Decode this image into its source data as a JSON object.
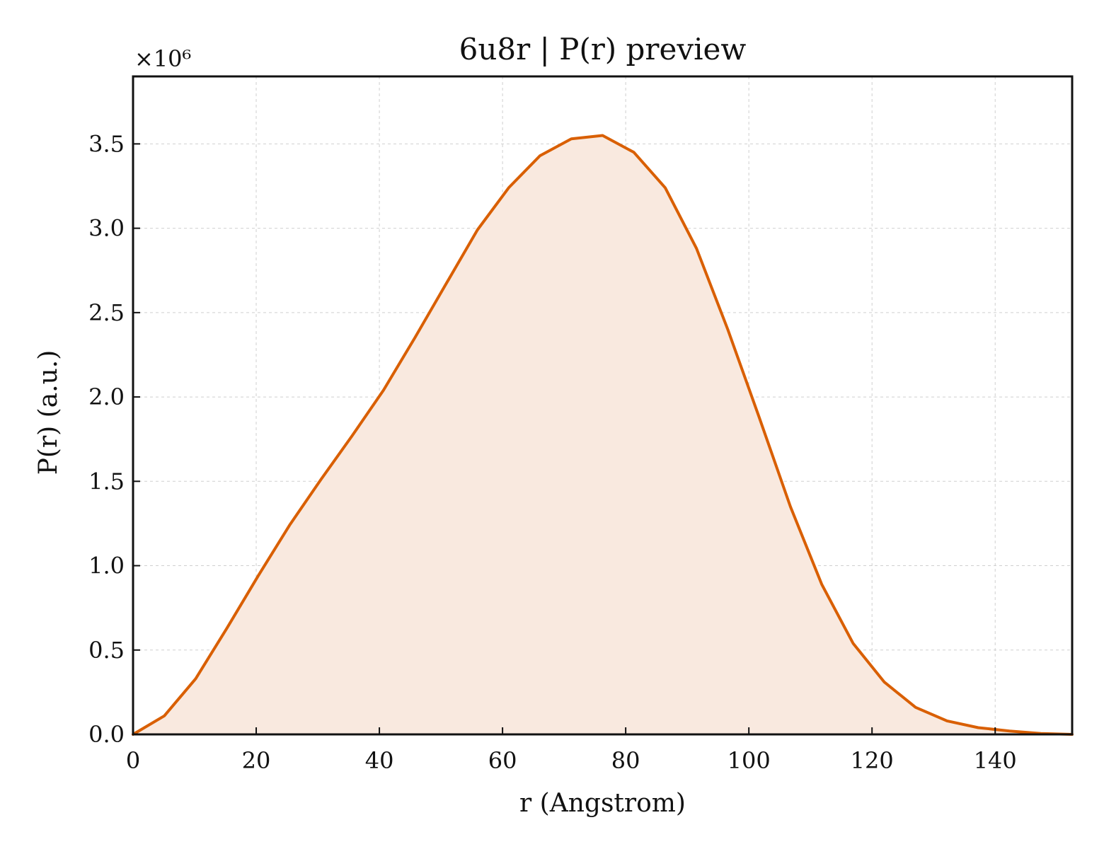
{
  "chart_data": {
    "type": "area",
    "title": "6u8r | P(r) preview",
    "xlabel": "r (Angstrom)",
    "ylabel": "P(r) (a.u.)",
    "y_scale_label": "×10⁶",
    "y_multiplier": 1000000,
    "xlim": [
      0,
      152.5
    ],
    "ylim": [
      0,
      3.9
    ],
    "x_ticks": [
      0,
      20,
      40,
      60,
      80,
      100,
      120,
      140
    ],
    "y_ticks": [
      0.0,
      0.5,
      1.0,
      1.5,
      2.0,
      2.5,
      3.0,
      3.5
    ],
    "grid": true,
    "series": [
      {
        "color": "#d95f02",
        "fill_color": "#f9e9df",
        "x": [
          0,
          5.08,
          10.17,
          15.25,
          20.33,
          25.42,
          30.5,
          35.58,
          40.67,
          45.75,
          50.83,
          55.92,
          61.0,
          66.08,
          71.17,
          76.25,
          81.33,
          86.42,
          91.5,
          96.58,
          101.67,
          106.75,
          111.83,
          116.92,
          122.0,
          127.08,
          132.17,
          137.25,
          142.33,
          147.42,
          152.5
        ],
        "values": [
          0.0,
          0.11,
          0.33,
          0.63,
          0.94,
          1.24,
          1.51,
          1.77,
          2.04,
          2.35,
          2.67,
          2.99,
          3.24,
          3.43,
          3.53,
          3.55,
          3.45,
          3.24,
          2.88,
          2.4,
          1.88,
          1.35,
          0.89,
          0.54,
          0.31,
          0.16,
          0.08,
          0.04,
          0.02,
          0.005,
          0.0
        ]
      }
    ]
  }
}
